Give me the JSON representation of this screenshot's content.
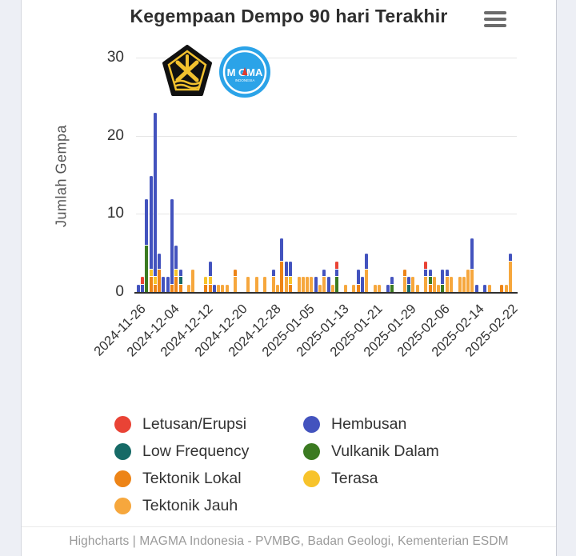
{
  "header": {
    "title": "Kegempaan Dempo 90 hari Terakhir",
    "menu_icon": "hamburger-menu-icon"
  },
  "logos": {
    "esdm_alt": "Kementerian ESDM",
    "magma_text": "MAGMA",
    "magma_sub": "INDONESIA"
  },
  "footer": {
    "credits": "Highcharts | MAGMA Indonesia - PVMBG, Badan Geologi, Kementerian ESDM"
  },
  "chart_data": {
    "type": "bar",
    "stacked": true,
    "title": "Kegempaan Dempo 90 hari Terakhir",
    "xlabel": "",
    "ylabel": "Jumlah Gempa",
    "ylim": [
      0,
      30
    ],
    "yticks": [
      0,
      10,
      20,
      30
    ],
    "grid": "horizontal",
    "legend_position": "bottom",
    "x_tick_every": 8,
    "x_tick_labels": [
      "2024-11-26",
      "2024-12-04",
      "2024-12-12",
      "2024-12-20",
      "2024-12-28",
      "2025-01-05",
      "2025-01-13",
      "2025-01-21",
      "2025-01-29",
      "2025-02-06",
      "2025-02-14",
      "2025-02-22"
    ],
    "dates": [
      "2024-11-26",
      "2024-11-27",
      "2024-11-28",
      "2024-11-29",
      "2024-11-30",
      "2024-12-01",
      "2024-12-02",
      "2024-12-03",
      "2024-12-04",
      "2024-12-05",
      "2024-12-06",
      "2024-12-07",
      "2024-12-08",
      "2024-12-09",
      "2024-12-10",
      "2024-12-11",
      "2024-12-12",
      "2024-12-13",
      "2024-12-14",
      "2024-12-15",
      "2024-12-16",
      "2024-12-17",
      "2024-12-18",
      "2024-12-19",
      "2024-12-20",
      "2024-12-21",
      "2024-12-22",
      "2024-12-23",
      "2024-12-24",
      "2024-12-25",
      "2024-12-26",
      "2024-12-27",
      "2024-12-28",
      "2024-12-29",
      "2024-12-30",
      "2024-12-31",
      "2025-01-01",
      "2025-01-02",
      "2025-01-03",
      "2025-01-04",
      "2025-01-05",
      "2025-01-06",
      "2025-01-07",
      "2025-01-08",
      "2025-01-09",
      "2025-01-10",
      "2025-01-11",
      "2025-01-12",
      "2025-01-13",
      "2025-01-14",
      "2025-01-15",
      "2025-01-16",
      "2025-01-17",
      "2025-01-18",
      "2025-01-19",
      "2025-01-20",
      "2025-01-21",
      "2025-01-22",
      "2025-01-23",
      "2025-01-24",
      "2025-01-25",
      "2025-01-26",
      "2025-01-27",
      "2025-01-28",
      "2025-01-29",
      "2025-01-30",
      "2025-01-31",
      "2025-02-01",
      "2025-02-02",
      "2025-02-03",
      "2025-02-04",
      "2025-02-05",
      "2025-02-06",
      "2025-02-07",
      "2025-02-08",
      "2025-02-09",
      "2025-02-10",
      "2025-02-11",
      "2025-02-12",
      "2025-02-13",
      "2025-02-14",
      "2025-02-15",
      "2025-02-16",
      "2025-02-17",
      "2025-02-18",
      "2025-02-19",
      "2025-02-20",
      "2025-02-21",
      "2025-02-22",
      "2025-02-23"
    ],
    "stack_order_bottom_to_top": [
      "Tektonik Jauh",
      "Tektonik Lokal",
      "Terasa",
      "Vulkanik Dalam",
      "Low Frequency",
      "Hembusan",
      "Letusan/Erupsi"
    ],
    "series": [
      {
        "name": "Letusan/Erupsi",
        "color": "#E94335",
        "values": [
          0,
          1,
          0,
          0,
          0,
          0,
          0,
          0,
          0,
          0,
          0,
          0,
          0,
          0,
          0,
          0,
          0,
          0,
          0,
          0,
          0,
          0,
          0,
          0,
          0,
          0,
          0,
          0,
          0,
          0,
          0,
          0,
          0,
          0,
          0,
          0,
          0,
          0,
          0,
          0,
          0,
          0,
          0,
          0,
          0,
          0,
          0,
          1,
          0,
          0,
          0,
          0,
          0,
          0,
          0,
          0,
          0,
          0,
          0,
          0,
          0,
          0,
          0,
          0,
          0,
          0,
          0,
          0,
          1,
          0,
          0,
          0,
          0,
          0,
          0,
          0,
          0,
          0,
          0,
          0,
          0,
          0,
          0,
          0,
          0,
          0,
          0,
          0,
          0,
          0
        ]
      },
      {
        "name": "Hembusan",
        "color": "#4353BE",
        "values": [
          1,
          1,
          6,
          12,
          21,
          2,
          2,
          2,
          11,
          3,
          1,
          0,
          0,
          0,
          0,
          0,
          0,
          2,
          1,
          0,
          0,
          0,
          0,
          0,
          0,
          0,
          0,
          0,
          0,
          0,
          0,
          0,
          1,
          0,
          3,
          2,
          2,
          0,
          0,
          0,
          0,
          0,
          2,
          0,
          1,
          2,
          0,
          1,
          0,
          0,
          0,
          0,
          2,
          2,
          2,
          0,
          0,
          0,
          0,
          1,
          1,
          0,
          0,
          0,
          1,
          0,
          0,
          0,
          1,
          1,
          0,
          0,
          2,
          1,
          0,
          0,
          0,
          0,
          0,
          4,
          1,
          0,
          1,
          0,
          0,
          0,
          0,
          0,
          1,
          0
        ]
      },
      {
        "name": "Low Frequency",
        "color": "#166A66",
        "values": [
          0,
          0,
          0,
          0,
          0,
          0,
          0,
          0,
          0,
          0,
          1,
          0,
          0,
          0,
          0,
          0,
          0,
          0,
          0,
          0,
          0,
          0,
          0,
          0,
          0,
          0,
          0,
          0,
          0,
          0,
          0,
          0,
          0,
          0,
          0,
          0,
          0,
          0,
          0,
          0,
          0,
          0,
          0,
          0,
          0,
          0,
          0,
          0,
          0,
          0,
          0,
          0,
          0,
          0,
          0,
          0,
          0,
          0,
          0,
          0,
          0,
          0,
          0,
          0,
          1,
          0,
          0,
          0,
          0,
          0,
          0,
          0,
          0,
          0,
          0,
          0,
          0,
          0,
          0,
          0,
          0,
          0,
          0,
          0,
          0,
          0,
          0,
          0,
          0,
          0
        ]
      },
      {
        "name": "Vulkanik Dalam",
        "color": "#3B7A21",
        "values": [
          0,
          0,
          6,
          0,
          0,
          0,
          0,
          0,
          0,
          0,
          0,
          0,
          0,
          0,
          0,
          0,
          0,
          0,
          0,
          0,
          0,
          0,
          0,
          0,
          0,
          0,
          0,
          0,
          0,
          0,
          0,
          0,
          0,
          0,
          0,
          0,
          0,
          0,
          0,
          0,
          0,
          0,
          0,
          0,
          0,
          0,
          0,
          2,
          0,
          0,
          0,
          0,
          0,
          0,
          0,
          0,
          0,
          0,
          0,
          0,
          1,
          0,
          0,
          0,
          0,
          0,
          0,
          0,
          0,
          1,
          0,
          0,
          1,
          0,
          0,
          0,
          0,
          0,
          0,
          0,
          0,
          0,
          0,
          0,
          0,
          0,
          0,
          0,
          0,
          0
        ]
      },
      {
        "name": "Tektonik Lokal",
        "color": "#ED8417",
        "values": [
          0,
          0,
          0,
          2,
          1,
          3,
          0,
          0,
          1,
          2,
          1,
          0,
          0,
          0,
          0,
          0,
          1,
          1,
          0,
          0,
          0,
          0,
          0,
          1,
          0,
          0,
          0,
          0,
          0,
          0,
          0,
          0,
          0,
          0,
          4,
          0,
          1,
          0,
          0,
          0,
          0,
          0,
          0,
          0,
          0,
          0,
          0,
          0,
          0,
          0,
          0,
          0,
          1,
          0,
          0,
          0,
          0,
          0,
          0,
          0,
          0,
          0,
          0,
          1,
          0,
          0,
          0,
          0,
          0,
          1,
          0,
          0,
          0,
          0,
          0,
          0,
          0,
          0,
          0,
          0,
          0,
          0,
          0,
          0,
          0,
          0,
          1,
          0,
          0,
          0
        ]
      },
      {
        "name": "Terasa",
        "color": "#F7C32B",
        "values": [
          0,
          0,
          0,
          1,
          1,
          0,
          0,
          0,
          0,
          1,
          0,
          0,
          0,
          0,
          0,
          0,
          1,
          1,
          0,
          0,
          0,
          0,
          0,
          0,
          0,
          0,
          0,
          0,
          0,
          0,
          0,
          0,
          0,
          0,
          0,
          0,
          1,
          0,
          0,
          0,
          0,
          0,
          0,
          0,
          0,
          0,
          0,
          0,
          0,
          0,
          0,
          0,
          0,
          0,
          0,
          0,
          0,
          0,
          0,
          0,
          0,
          0,
          0,
          0,
          0,
          0,
          0,
          0,
          0,
          0,
          0,
          0,
          0,
          0,
          0,
          0,
          0,
          0,
          0,
          0,
          0,
          0,
          0,
          0,
          0,
          0,
          0,
          0,
          0,
          0
        ]
      },
      {
        "name": "Tektonik Jauh",
        "color": "#F6A73D",
        "values": [
          0,
          0,
          0,
          0,
          0,
          0,
          0,
          0,
          0,
          0,
          0,
          0,
          1,
          3,
          0,
          0,
          0,
          0,
          0,
          1,
          1,
          1,
          0,
          2,
          0,
          0,
          2,
          0,
          2,
          0,
          2,
          0,
          2,
          1,
          0,
          2,
          0,
          0,
          2,
          2,
          2,
          2,
          0,
          1,
          2,
          0,
          1,
          0,
          0,
          1,
          0,
          1,
          0,
          0,
          3,
          0,
          1,
          1,
          0,
          0,
          0,
          0,
          0,
          2,
          0,
          2,
          1,
          0,
          2,
          0,
          2,
          1,
          0,
          2,
          2,
          0,
          2,
          2,
          3,
          3,
          0,
          0,
          0,
          1,
          0,
          0,
          0,
          1,
          4,
          0
        ]
      }
    ],
    "legend_columns": [
      [
        "Letusan/Erupsi",
        "Low Frequency",
        "Tektonik Lokal",
        "Tektonik Jauh"
      ],
      [
        "Hembusan",
        "Vulkanik Dalam",
        "Terasa"
      ]
    ]
  }
}
